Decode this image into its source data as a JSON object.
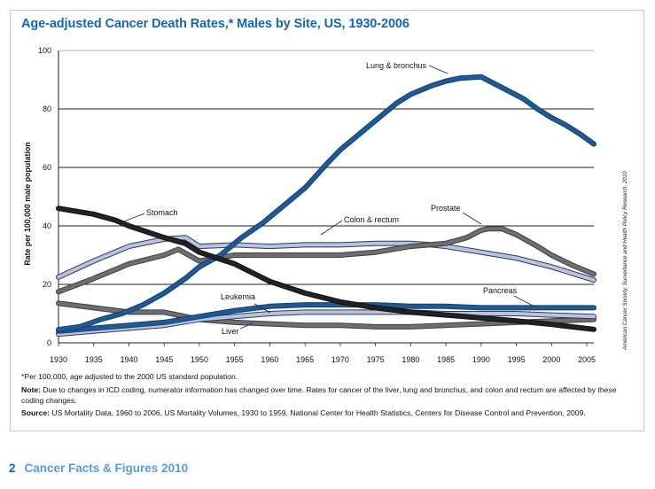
{
  "title": "Age-adjusted Cancer Death Rates,* Males by Site, US, 1930-2006",
  "footnote": "*Per 100,000, age adjusted to the 2000 US standard population.",
  "note_label": "Note:",
  "note_text": " Due to changes in ICD coding, numerator information has changed over time. Rates for cancer of the liver, lung and bronchus, and colon and rectum are affected by these coding changes.",
  "source_label": "Source:",
  "source_text": " US Mortality Data, 1960 to 2006, US Mortality Volumes, 1930 to 1959, National Center for Health Statistics, Centers for Disease Control and Prevention, 2009.",
  "credit": "American Cancer Society, Surveillance and Health Policy Research, 2010",
  "footer": {
    "page": "2",
    "text": "Cancer Facts & Figures 2010"
  },
  "chart_data": {
    "type": "line",
    "title": "Age-adjusted Cancer Death Rates,* Males by Site, US, 1930-2006",
    "xlabel": "",
    "ylabel": "Rate per 100,000 male population",
    "xlim": [
      1930,
      2006
    ],
    "ylim": [
      0,
      100
    ],
    "xticks": [
      1930,
      1935,
      1940,
      1945,
      1950,
      1955,
      1960,
      1965,
      1970,
      1975,
      1980,
      1985,
      1990,
      1995,
      2000,
      2005
    ],
    "yticks": [
      0,
      20,
      40,
      60,
      80,
      100
    ],
    "series": [
      {
        "name": "Lung & bronchus",
        "color": "#1f5a97",
        "x": [
          1930,
          1933,
          1936,
          1939,
          1942,
          1945,
          1948,
          1950,
          1953,
          1956,
          1959,
          1962,
          1965,
          1968,
          1970,
          1973,
          1975,
          1978,
          1980,
          1983,
          1985,
          1987,
          1990,
          1992,
          1994,
          1996,
          1998,
          2000,
          2002,
          2004,
          2006
        ],
        "y": [
          4.5,
          5.5,
          8,
          10,
          13,
          17,
          22,
          26,
          30,
          36,
          41,
          47,
          53,
          61,
          66,
          72,
          76,
          82,
          85,
          88,
          89.5,
          90.5,
          91,
          88.5,
          86,
          83.5,
          80,
          77,
          74.5,
          71.5,
          68
        ]
      },
      {
        "name": "Stomach",
        "color": "#222222",
        "x": [
          1930,
          1935,
          1938,
          1940,
          1945,
          1948,
          1950,
          1955,
          1960,
          1965,
          1970,
          1975,
          1980,
          1985,
          1990,
          1995,
          2000,
          2006
        ],
        "y": [
          46,
          44,
          42,
          40,
          36,
          34,
          31,
          27,
          21,
          17,
          14,
          12,
          10.5,
          9.5,
          8.5,
          7.5,
          6.3,
          4.6
        ]
      },
      {
        "name": "Prostate",
        "color": "#6d6e71",
        "x": [
          1930,
          1935,
          1940,
          1945,
          1947,
          1950,
          1955,
          1960,
          1965,
          1970,
          1975,
          1980,
          1985,
          1988,
          1990,
          1991,
          1993,
          1995,
          1998,
          2000,
          2003,
          2006
        ],
        "y": [
          17.5,
          22,
          27,
          30,
          32,
          28,
          30,
          30,
          30,
          30,
          31,
          33,
          34,
          36,
          38.5,
          39,
          39,
          37,
          33,
          30,
          26.5,
          23.5
        ]
      },
      {
        "name": "Colon & rectum",
        "color": "#b9c3df",
        "x": [
          1930,
          1935,
          1940,
          1945,
          1948,
          1950,
          1955,
          1960,
          1965,
          1970,
          1975,
          1980,
          1983,
          1985,
          1990,
          1995,
          2000,
          2006
        ],
        "y": [
          22.5,
          28,
          33,
          35.5,
          36,
          33,
          33.5,
          33,
          33.5,
          33.5,
          34,
          34,
          33.5,
          33,
          31,
          29,
          26,
          21.5
        ]
      },
      {
        "name": "Pancreas",
        "color": "#1f5a97",
        "x": [
          1930,
          1935,
          1940,
          1945,
          1950,
          1955,
          1960,
          1965,
          1970,
          1975,
          1980,
          1985,
          1990,
          1995,
          2000,
          2006
        ],
        "y": [
          4,
          5,
          6,
          7,
          9,
          11,
          12.5,
          13,
          13,
          13,
          12.5,
          12.5,
          12,
          12,
          12,
          12
        ]
      },
      {
        "name": "Leukemia",
        "color": "#b9c3df",
        "x": [
          1930,
          1935,
          1940,
          1945,
          1950,
          1955,
          1960,
          1965,
          1970,
          1975,
          1980,
          1985,
          1990,
          1995,
          2000,
          2006
        ],
        "y": [
          3,
          4,
          5,
          6,
          8,
          9,
          10,
          10.5,
          10.5,
          10.5,
          10.5,
          10,
          10,
          10,
          9.5,
          9
        ]
      },
      {
        "name": "Liver",
        "color": "#6d6e71",
        "x": [
          1930,
          1935,
          1940,
          1945,
          1950,
          1955,
          1960,
          1965,
          1970,
          1975,
          1980,
          1985,
          1990,
          1995,
          2000,
          2006
        ],
        "y": [
          13.5,
          12,
          10.5,
          10.5,
          8,
          7,
          6.5,
          6,
          6,
          5.5,
          5.5,
          6,
          6.5,
          7,
          7.5,
          8
        ]
      }
    ],
    "annotations": [
      {
        "text": "Lung & bronchus",
        "series": "Lung & bronchus"
      },
      {
        "text": "Stomach",
        "series": "Stomach"
      },
      {
        "text": "Prostate",
        "series": "Prostate"
      },
      {
        "text": "Colon & rectum",
        "series": "Colon & rectum"
      },
      {
        "text": "Pancreas",
        "series": "Pancreas"
      },
      {
        "text": "Leukemia",
        "series": "Leukemia"
      },
      {
        "text": "Liver",
        "series": "Liver"
      }
    ]
  }
}
